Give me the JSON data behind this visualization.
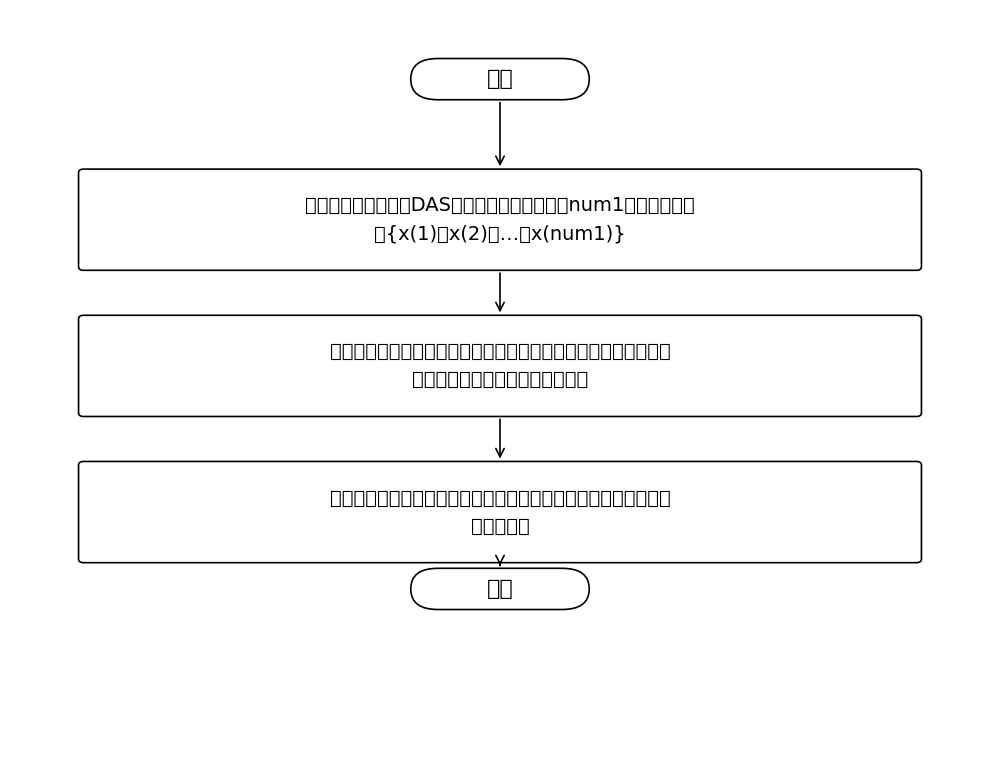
{
  "bg_color": "#ffffff",
  "border_color": "#000000",
  "text_color": "#000000",
  "arrow_color": "#000000",
  "start_end_text": [
    "开始",
    "结束"
  ],
  "box_texts": [
    "使用分布式振动传感DAS设备进行采样，以获取num1个光纤振动信\n号{x(1)，x(2)，…，x(num1)}",
    "对采样得到的多个光纤振动信号进行预处理，以得到预处理后的多\n个光纤振动信号构成的振动样本集",
    "将得到的振动样本集输入训练好的一维卷积神经网络，以得到对应\n的分类结果"
  ],
  "figsize": [
    10.0,
    7.58
  ],
  "dpi": 100
}
